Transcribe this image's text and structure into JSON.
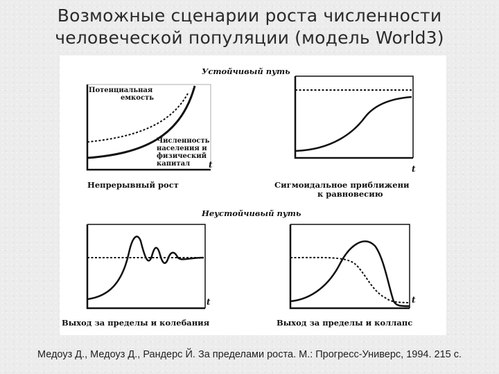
{
  "title": {
    "line1": "Возможные сценарии роста численности",
    "line2": "человеческой популяции (модель World3)"
  },
  "figure": {
    "sustainable_heading": "Устойчивый путь",
    "unsustainable_heading": "Неустойчивый путь",
    "axis_symbol": "t",
    "panels": [
      {
        "id": "continuous-growth",
        "label_lines": [
          "Непрерывный рост"
        ],
        "annotations": {
          "capacity_lines": [
            "Потенциальная",
            "емкость"
          ],
          "population_lines": [
            "Численность",
            "населения и",
            "физический",
            "капитал"
          ]
        }
      },
      {
        "id": "sigmoid",
        "label_lines": [
          "Сигмоидальное приближени",
          "к равновесию"
        ]
      },
      {
        "id": "overshoot-oscillation",
        "label_lines": [
          "Выход за пределы и колебания"
        ]
      },
      {
        "id": "overshoot-collapse",
        "label_lines": [
          "Выход за пределы и коллапс"
        ]
      }
    ]
  },
  "caption": "Медоуз Д., Медоуз Д., Рандерс Й. За пределами роста. М.: Прогресс-Универс, 1994. 215 с.",
  "colors": {
    "background": "#ececec",
    "figure_background": "#ffffff",
    "ink": "#111111",
    "title_text": "#2a2a2a"
  }
}
